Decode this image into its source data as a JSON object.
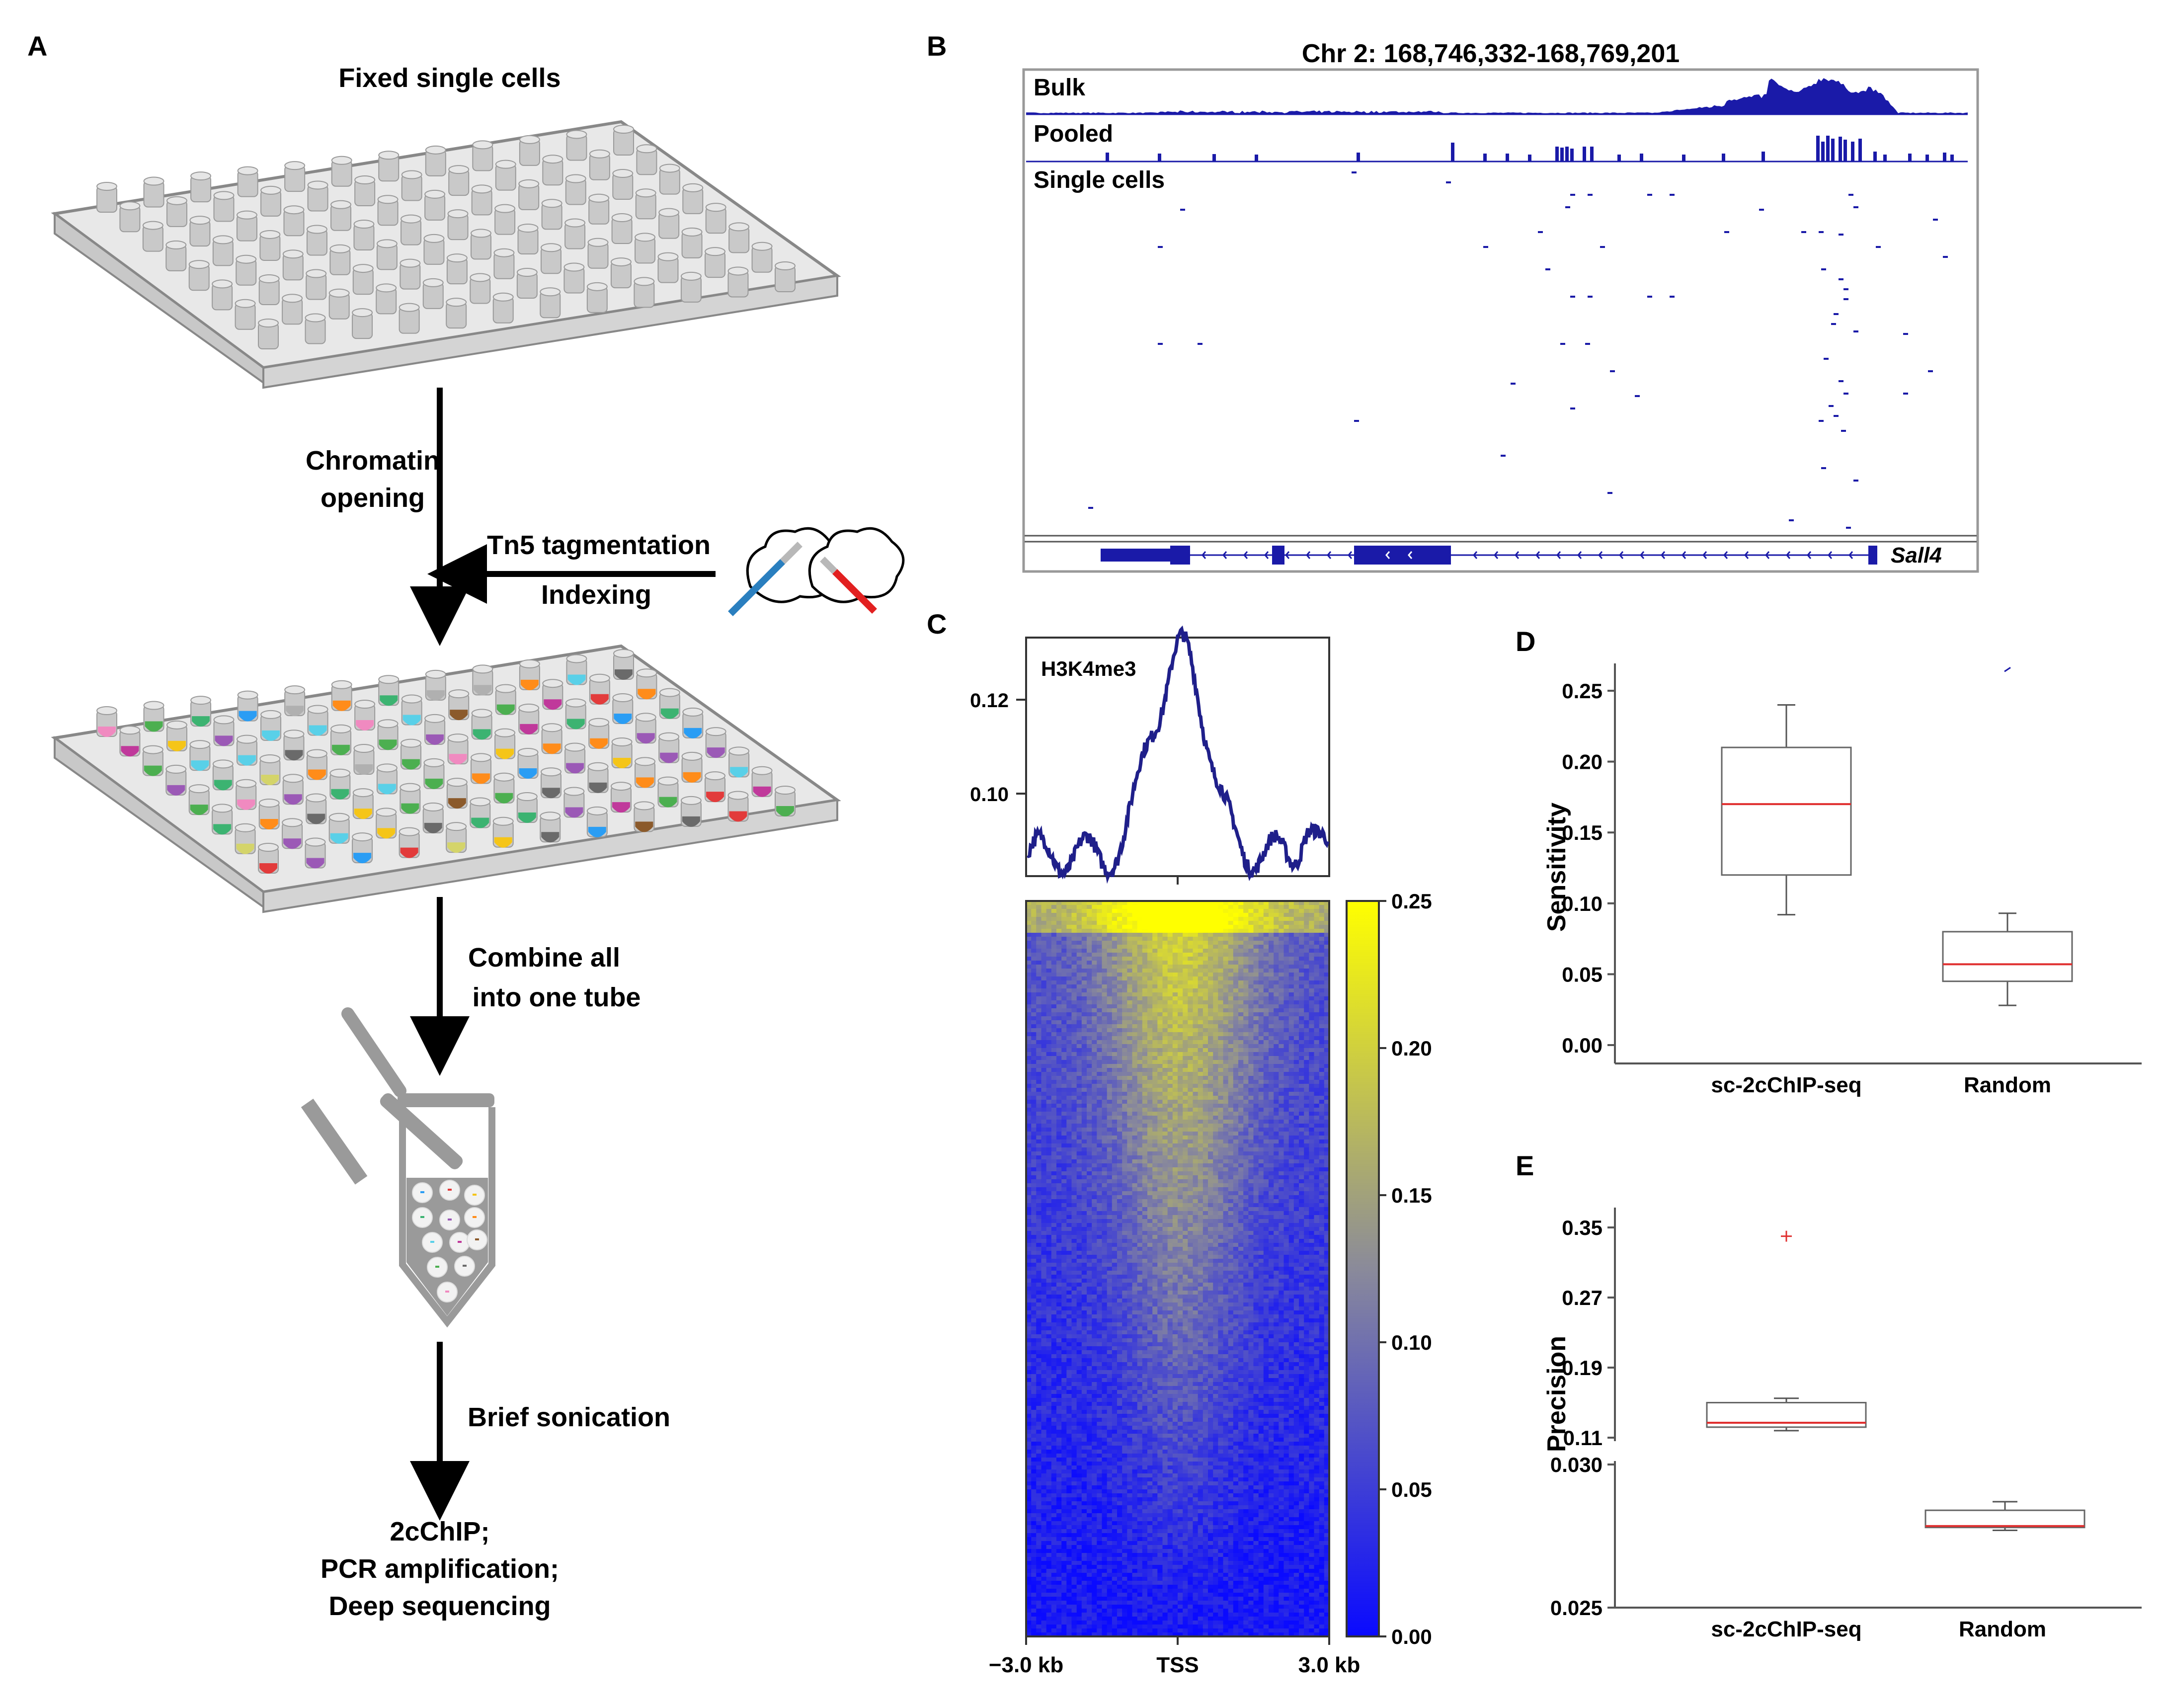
{
  "panels": {
    "A": {
      "letter": "A",
      "top_label": "Fixed single cells",
      "step1_line1": "Chromatin",
      "step1_line2": "opening",
      "side_line1": "Tn5 tagmentation",
      "side_line2": "Indexing",
      "step2_line1": "Combine all",
      "step2_line2": "into one tube",
      "step3": "Brief sonication",
      "final_line1": "2cChIP;",
      "final_line2": "PCR amplification;",
      "final_line3": "Deep sequencing",
      "plate_rows": 8,
      "plate_cols": 12,
      "well_colors": [
        "#f08ac0",
        "#e23b3b",
        "#2a9df4",
        "#f5c518",
        "#3cb371",
        "#9b59b6",
        "#8b5a2b",
        "#ff8c1a",
        "#6a6a6a",
        "#59d0e8",
        "#b0b0b0",
        "#c0399b",
        "#4caf50",
        "#d4d46a"
      ],
      "tube_dot_colors": [
        "#2a9df4",
        "#e23b3b",
        "#f5c518",
        "#3cb371",
        "#9b59b6",
        "#ff8c1a",
        "#59d0e8",
        "#c0399b",
        "#8b5a2b",
        "#4caf50",
        "#6a6a6a",
        "#f08ac0",
        "#d4d46a",
        "#2a9df4"
      ]
    },
    "B": {
      "letter": "B",
      "coordinates": "Chr 2: 168,746,332-168,769,201",
      "track_bulk": "Bulk",
      "track_pooled": "Pooled",
      "track_single": "Single cells",
      "gene": "Sall4",
      "track_color": "#1a1aa8"
    },
    "C": {
      "letter": "C",
      "profile_label": "H3K4me3",
      "profile_y_ticks": [
        "0.12",
        "0.10"
      ],
      "x_labels": [
        "−3.0 kb",
        "TSS",
        "3.0 kb"
      ],
      "colorbar_ticks": [
        "0.25",
        "0.20",
        "0.15",
        "0.10",
        "0.05",
        "0.00"
      ],
      "line_color": "#1f1f8a",
      "cmap_low": "#0a0aff",
      "cmap_high": "#ffff00"
    },
    "D": {
      "letter": "D",
      "chart_data": {
        "type": "box",
        "ylabel": "Sensitivity",
        "categories": [
          "sc-2cChIP-seq",
          "Random"
        ],
        "y_ticks": [
          "0.25",
          "0.20",
          "0.15",
          "0.10",
          "0.05",
          "0.00"
        ],
        "ylim": [
          -0.01,
          0.265
        ],
        "boxes": [
          {
            "whisker_low": 0.092,
            "q1": 0.12,
            "median": 0.17,
            "q3": 0.21,
            "whisker_high": 0.24
          },
          {
            "whisker_low": 0.028,
            "q1": 0.045,
            "median": 0.057,
            "q3": 0.08,
            "whisker_high": 0.093,
            "outliers": [
              0.265
            ]
          }
        ],
        "median_color": "#e03030"
      }
    },
    "E": {
      "letter": "E",
      "chart_data": {
        "type": "box",
        "ylabel": "Precision",
        "categories": [
          "sc-2cChIP-seq",
          "Random"
        ],
        "y_ticks_upper": [
          "0.35",
          "0.27",
          "0.19",
          "0.11"
        ],
        "y_ticks_lower": [
          "0.030",
          "0.025"
        ],
        "axis_break": true,
        "ylim_upper": [
          0.11,
          0.35
        ],
        "ylim_lower": [
          0.025,
          0.03
        ],
        "boxes": [
          {
            "whisker_low": 0.118,
            "q1": 0.122,
            "median": 0.127,
            "q3": 0.15,
            "whisker_high": 0.155,
            "outliers": [
              0.34
            ]
          },
          {
            "whisker_low": 0.0277,
            "q1": 0.0278,
            "median": 0.02785,
            "q3": 0.0284,
            "whisker_high": 0.0287
          }
        ],
        "median_color": "#e03030",
        "outlier_color": "#e03030"
      }
    }
  }
}
